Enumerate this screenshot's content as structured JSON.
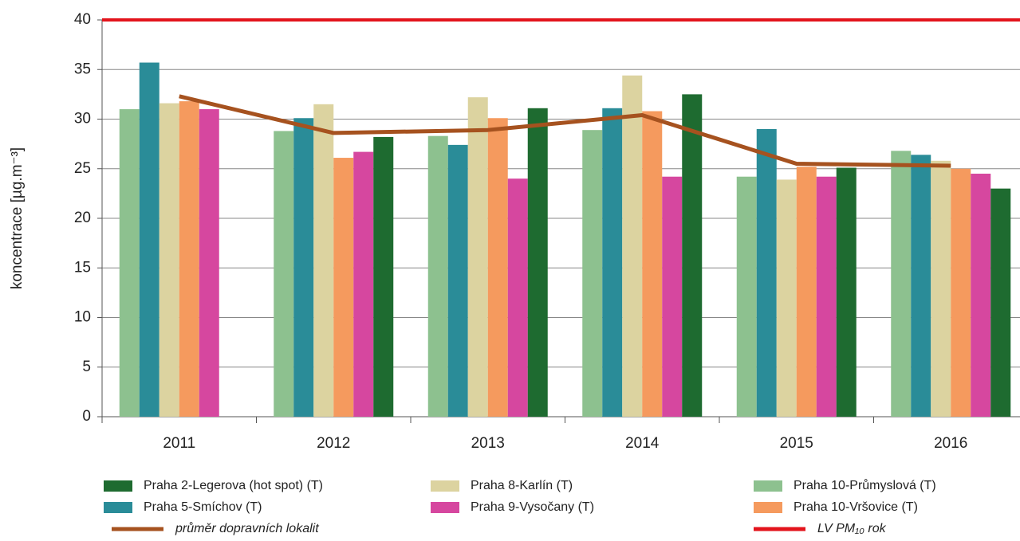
{
  "chart_data": {
    "type": "bar",
    "y_label": "koncentrace [µg.m⁻³]",
    "categories": [
      "2011",
      "2012",
      "2013",
      "2014",
      "2015",
      "2016"
    ],
    "series": [
      {
        "name": "Praha 10-Průmyslová (T)",
        "color": "#8dc18f",
        "values": [
          31,
          28.8,
          28.3,
          28.9,
          24.2,
          26.8
        ]
      },
      {
        "name": "Praha 5-Smíchov (T)",
        "color": "#2a8c98",
        "values": [
          35.7,
          30.1,
          27.4,
          31.1,
          29,
          26.4
        ]
      },
      {
        "name": "Praha 8-Karlín (T)",
        "color": "#dcd3a0",
        "values": [
          31.6,
          31.5,
          32.2,
          34.4,
          23.9,
          25.8
        ]
      },
      {
        "name": "Praha 10-Vršovice (T)",
        "color": "#f59a5e",
        "values": [
          31.8,
          26.1,
          30.1,
          30.8,
          25.2,
          25
        ]
      },
      {
        "name": "Praha 9-Vysočany (T)",
        "color": "#d6479f",
        "values": [
          31,
          26.7,
          24,
          24.2,
          24.2,
          24.5
        ]
      },
      {
        "name": "Praha 2-Legerova (hot spot) (T)",
        "color": "#1e6b30",
        "values": [
          null,
          28.2,
          31.1,
          32.5,
          25.1,
          23
        ]
      }
    ],
    "average": {
      "name": "průměr dopravních lokalit",
      "color": "#a6521f",
      "values": [
        32.3,
        28.6,
        28.9,
        30.4,
        25.5,
        25.3
      ]
    },
    "limit": {
      "name": "LV PM₁₀ rok",
      "color": "#e3141c",
      "value": 40
    },
    "ylim": [
      0,
      40
    ],
    "yticks": [
      0,
      5,
      10,
      15,
      20,
      25,
      30,
      35,
      40
    ],
    "grid": true
  }
}
